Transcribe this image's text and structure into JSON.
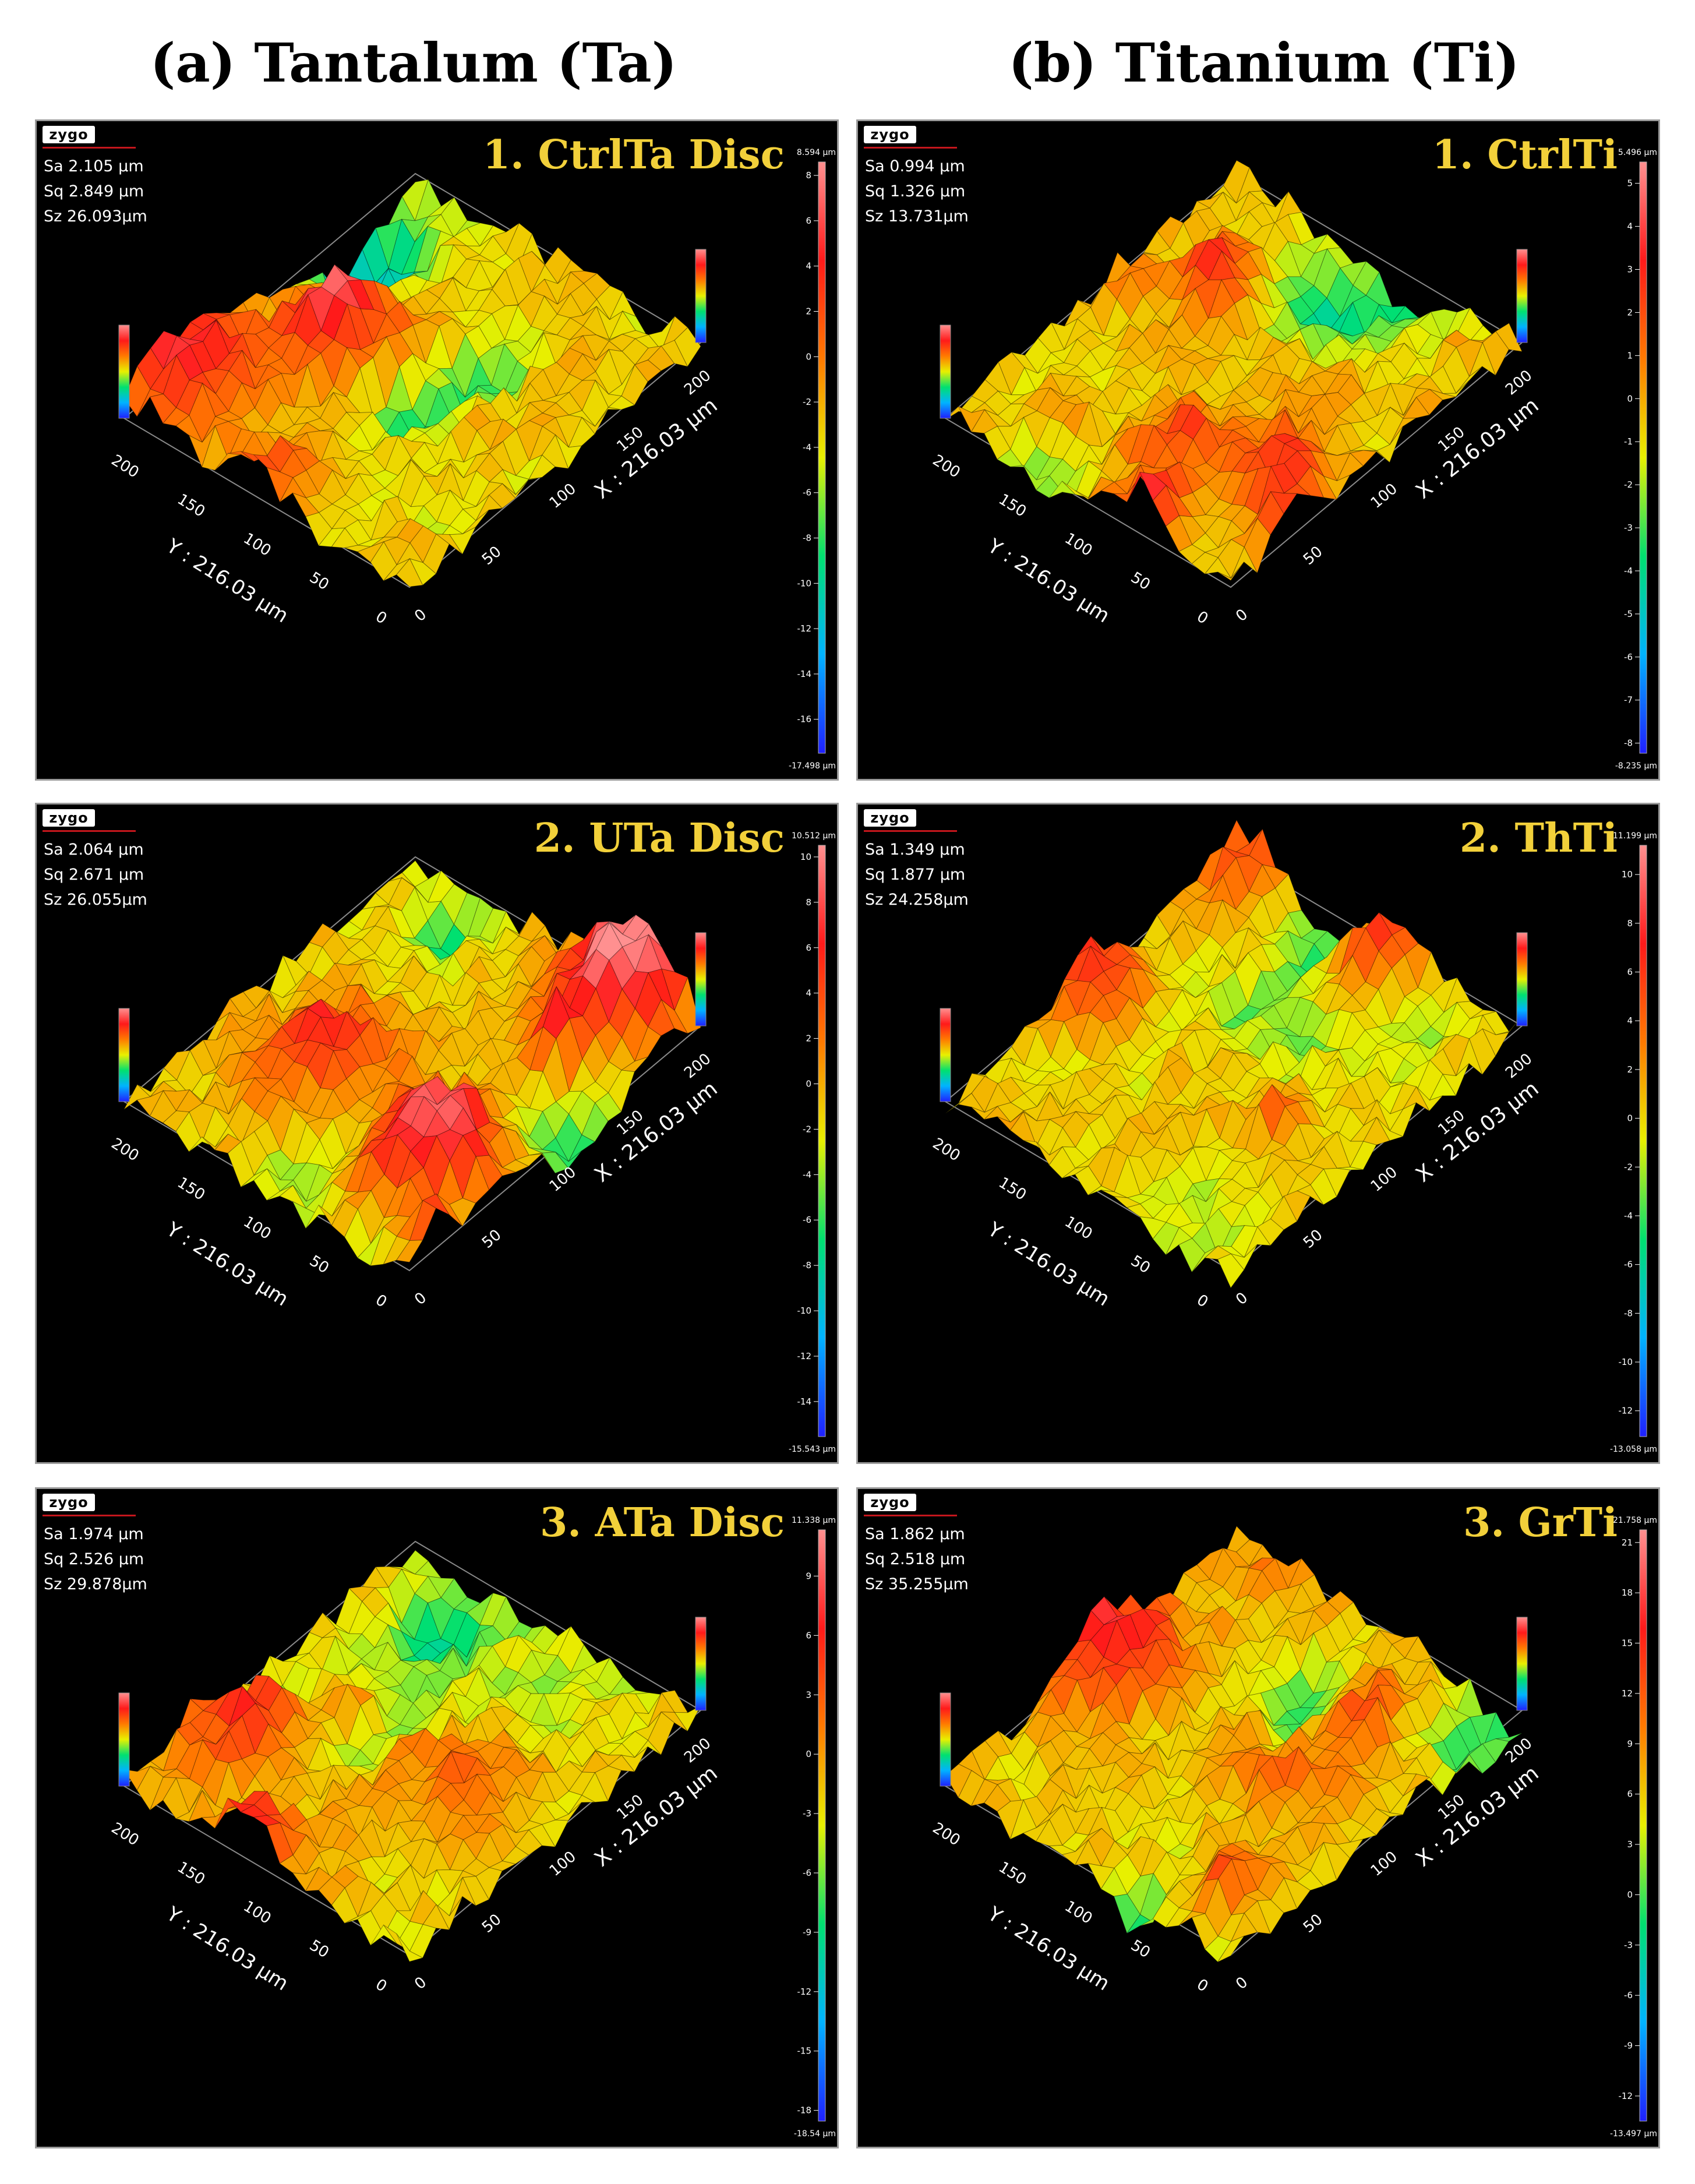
{
  "headers": {
    "left": "(a) Tantalum (Ta)",
    "right": "(b) Titanium (Ti)"
  },
  "logo_text": "zygo",
  "x_axis_label": "X : 216.03 µm",
  "y_axis_label": "Y : 216.03 µm",
  "colors": {
    "title": "#f2d03a",
    "background": "#000000",
    "colormap": [
      "#2020ff",
      "#00b3ff",
      "#00e070",
      "#e8f000",
      "#ff7a00",
      "#ff1a1a",
      "#ff9090"
    ]
  },
  "panels": [
    {
      "id": "ta-1",
      "title": "1. CtrlTa Disc",
      "stats": [
        "Sa 2.105  µm",
        "Sq 2.849  µm",
        "Sz 26.093µm"
      ],
      "scale_max": "8.594 µm",
      "scale_min": "-17.498 µm",
      "scale_ticks": [
        "8",
        "6",
        "4",
        "2",
        "0",
        "-2",
        "-4",
        "-6",
        "-8",
        "-10",
        "-12",
        "-14",
        "-16"
      ],
      "y_ticks": [
        "0",
        "50",
        "100",
        "150",
        "200"
      ],
      "x_ticks": [
        "0",
        "50",
        "100",
        "150",
        "200"
      ]
    },
    {
      "id": "ti-1",
      "title": "1. CtrlTi",
      "stats": [
        "Sa 0.994  µm",
        "Sq 1.326  µm",
        "Sz 13.731µm"
      ],
      "scale_max": "5.496 µm",
      "scale_min": "-8.235 µm",
      "scale_ticks": [
        "5",
        "4",
        "3",
        "2",
        "1",
        "0",
        "-1",
        "-2",
        "-3",
        "-4",
        "-5",
        "-6",
        "-7",
        "-8"
      ],
      "y_ticks": [
        "0",
        "50",
        "100",
        "150",
        "200"
      ],
      "x_ticks": [
        "0",
        "50",
        "100",
        "150",
        "200"
      ]
    },
    {
      "id": "ta-2",
      "title": "2. UTa Disc",
      "stats": [
        "Sa 2.064  µm",
        "Sq 2.671  µm",
        "Sz 26.055µm"
      ],
      "scale_max": "10.512 µm",
      "scale_min": "-15.543 µm",
      "scale_ticks": [
        "10",
        "8",
        "6",
        "4",
        "2",
        "0",
        "-2",
        "-4",
        "-6",
        "-8",
        "-10",
        "-12",
        "-14"
      ],
      "y_ticks": [
        "0",
        "50",
        "100",
        "150",
        "200"
      ],
      "x_ticks": [
        "0",
        "50",
        "100",
        "150",
        "200"
      ]
    },
    {
      "id": "ti-2",
      "title": "2. ThTi",
      "stats": [
        "Sa 1.349  µm",
        "Sq 1.877  µm",
        "Sz 24.258µm"
      ],
      "scale_max": "11.199 µm",
      "scale_min": "-13.058 µm",
      "scale_ticks": [
        "10",
        "8",
        "6",
        "4",
        "2",
        "0",
        "-2",
        "-4",
        "-6",
        "-8",
        "-10",
        "-12"
      ],
      "y_ticks": [
        "0",
        "50",
        "100",
        "150",
        "200"
      ],
      "x_ticks": [
        "0",
        "50",
        "100",
        "150",
        "200"
      ]
    },
    {
      "id": "ta-3",
      "title": "3. ATa Disc",
      "stats": [
        "Sa 1.974  µm",
        "Sq 2.526  µm",
        "Sz 29.878µm"
      ],
      "scale_max": "11.338 µm",
      "scale_min": "-18.54 µm",
      "scale_ticks": [
        "9",
        "6",
        "3",
        "0",
        "-3",
        "-6",
        "-9",
        "-12",
        "-15",
        "-18"
      ],
      "y_ticks": [
        "0",
        "50",
        "100",
        "150",
        "200"
      ],
      "x_ticks": [
        "0",
        "50",
        "100",
        "150",
        "200"
      ]
    },
    {
      "id": "ti-3",
      "title": "3. GrTi",
      "stats": [
        "Sa 1.862  µm",
        "Sq 2.518  µm",
        "Sz 35.255µm"
      ],
      "scale_max": "21.758 µm",
      "scale_min": "-13.497 µm",
      "scale_ticks": [
        "21",
        "18",
        "15",
        "12",
        "9",
        "6",
        "3",
        "0",
        "-3",
        "-6",
        "-9",
        "-12"
      ],
      "y_ticks": [
        "0",
        "50",
        "100",
        "150",
        "200"
      ],
      "x_ticks": [
        "0",
        "50",
        "100",
        "150",
        "200"
      ]
    }
  ]
}
